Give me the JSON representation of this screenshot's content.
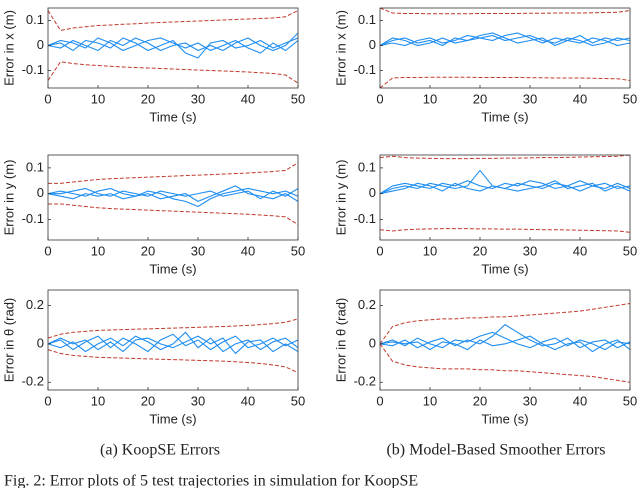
{
  "chart_data": [
    {
      "type": "line",
      "ylabel": "Error in x (m)",
      "xlabel": "Time (s)",
      "xlim": [
        0,
        50
      ],
      "xticks": [
        0,
        10,
        20,
        30,
        40,
        50
      ],
      "ylim": [
        -0.17,
        0.15
      ],
      "yticks": [
        -0.1,
        0,
        0.1
      ],
      "x": [
        0,
        2.5,
        5,
        7.5,
        10,
        12.5,
        15,
        17.5,
        20,
        22.5,
        25,
        27.5,
        30,
        32.5,
        35,
        37.5,
        40,
        42.5,
        45,
        47.5,
        50
      ],
      "series": [
        {
          "color": "#c0392b",
          "style": "dashed",
          "values": [
            0.14,
            0.06,
            0.07,
            0.075,
            0.08,
            0.082,
            0.085,
            0.087,
            0.09,
            0.092,
            0.094,
            0.096,
            0.098,
            0.1,
            0.102,
            0.104,
            0.106,
            0.108,
            0.11,
            0.115,
            0.14
          ]
        },
        {
          "color": "#c0392b",
          "style": "dashed",
          "values": [
            -0.14,
            -0.065,
            -0.072,
            -0.077,
            -0.08,
            -0.083,
            -0.086,
            -0.088,
            -0.09,
            -0.092,
            -0.094,
            -0.096,
            -0.098,
            -0.1,
            -0.102,
            -0.104,
            -0.106,
            -0.109,
            -0.112,
            -0.118,
            -0.15
          ]
        },
        {
          "color": "#1f8ef1",
          "style": "solid",
          "values": [
            0,
            0.01,
            -0.02,
            0.02,
            0.01,
            -0.01,
            0.03,
            0.01,
            -0.02,
            0.0,
            0.02,
            -0.03,
            -0.05,
            0.01,
            0.02,
            -0.01,
            0.0,
            0.02,
            -0.01,
            0.01,
            0.03
          ]
        },
        {
          "color": "#1f8ef1",
          "style": "solid",
          "values": [
            0,
            -0.01,
            0.02,
            0.0,
            -0.02,
            0.02,
            0.0,
            0.03,
            0.01,
            -0.02,
            0.0,
            0.01,
            -0.02,
            0.0,
            -0.02,
            0.01,
            0.03,
            0.0,
            -0.02,
            0.0,
            0.05
          ]
        },
        {
          "color": "#1f8ef1",
          "style": "solid",
          "values": [
            0,
            0.02,
            0.01,
            -0.01,
            0.03,
            0.01,
            -0.02,
            0.0,
            0.02,
            0.03,
            0.01,
            -0.01,
            0.01,
            -0.02,
            0.0,
            0.02,
            -0.01,
            -0.03,
            0.01,
            -0.02,
            0.02
          ]
        }
      ]
    },
    {
      "type": "line",
      "ylabel": "Error in x (m)",
      "xlabel": "Time (s)",
      "xlim": [
        0,
        50
      ],
      "xticks": [
        0,
        10,
        20,
        30,
        40,
        50
      ],
      "ylim": [
        -0.17,
        0.15
      ],
      "yticks": [
        -0.1,
        0,
        0.1
      ],
      "x": [
        0,
        2.5,
        5,
        7.5,
        10,
        12.5,
        15,
        17.5,
        20,
        22.5,
        25,
        27.5,
        30,
        32.5,
        35,
        37.5,
        40,
        42.5,
        45,
        47.5,
        50
      ],
      "series": [
        {
          "color": "#c0392b",
          "style": "dashed",
          "values": [
            0.15,
            0.13,
            0.128,
            0.128,
            0.127,
            0.127,
            0.127,
            0.127,
            0.128,
            0.128,
            0.128,
            0.128,
            0.129,
            0.129,
            0.13,
            0.13,
            0.13,
            0.131,
            0.132,
            0.133,
            0.14
          ]
        },
        {
          "color": "#c0392b",
          "style": "dashed",
          "values": [
            -0.17,
            -0.13,
            -0.128,
            -0.128,
            -0.127,
            -0.127,
            -0.127,
            -0.127,
            -0.128,
            -0.128,
            -0.128,
            -0.128,
            -0.129,
            -0.129,
            -0.13,
            -0.13,
            -0.13,
            -0.131,
            -0.132,
            -0.133,
            -0.14
          ]
        },
        {
          "color": "#1f8ef1",
          "style": "solid",
          "values": [
            0,
            0.02,
            0.03,
            0.01,
            0.02,
            0.0,
            0.03,
            0.02,
            0.04,
            0.05,
            0.03,
            0.01,
            0.02,
            0.03,
            0.0,
            0.02,
            0.01,
            0.03,
            0.02,
            0.0,
            0.01
          ]
        },
        {
          "color": "#1f8ef1",
          "style": "solid",
          "values": [
            0,
            0.01,
            0.0,
            0.02,
            0.03,
            0.01,
            0.02,
            0.04,
            0.03,
            0.02,
            0.04,
            0.05,
            0.03,
            0.01,
            0.03,
            0.02,
            0.04,
            0.01,
            0.03,
            0.02,
            0.03
          ]
        },
        {
          "color": "#1f8ef1",
          "style": "solid",
          "values": [
            0,
            0.03,
            0.02,
            0.0,
            0.01,
            0.03,
            0.01,
            0.02,
            0.03,
            0.04,
            0.02,
            0.03,
            0.04,
            0.02,
            0.01,
            0.03,
            0.02,
            0.0,
            0.01,
            0.03,
            0.02
          ]
        }
      ]
    },
    {
      "type": "line",
      "ylabel": "Error in y (m)",
      "xlabel": "Time (s)",
      "xlim": [
        0,
        50
      ],
      "xticks": [
        0,
        10,
        20,
        30,
        40,
        50
      ],
      "ylim": [
        -0.18,
        0.15
      ],
      "yticks": [
        -0.1,
        0,
        0.1
      ],
      "x": [
        0,
        2.5,
        5,
        7.5,
        10,
        12.5,
        15,
        17.5,
        20,
        22.5,
        25,
        27.5,
        30,
        32.5,
        35,
        37.5,
        40,
        42.5,
        45,
        47.5,
        50
      ],
      "series": [
        {
          "color": "#c0392b",
          "style": "dashed",
          "values": [
            0.04,
            0.04,
            0.045,
            0.05,
            0.055,
            0.058,
            0.06,
            0.062,
            0.064,
            0.066,
            0.068,
            0.07,
            0.072,
            0.074,
            0.076,
            0.078,
            0.08,
            0.083,
            0.086,
            0.09,
            0.12
          ]
        },
        {
          "color": "#c0392b",
          "style": "dashed",
          "values": [
            -0.04,
            -0.04,
            -0.045,
            -0.05,
            -0.055,
            -0.058,
            -0.06,
            -0.062,
            -0.064,
            -0.066,
            -0.068,
            -0.07,
            -0.072,
            -0.074,
            -0.076,
            -0.078,
            -0.08,
            -0.083,
            -0.086,
            -0.09,
            -0.12
          ]
        },
        {
          "color": "#1f8ef1",
          "style": "solid",
          "values": [
            0,
            0.01,
            0.0,
            -0.01,
            0.01,
            0.02,
            0.0,
            -0.01,
            0.01,
            0.0,
            -0.02,
            -0.03,
            -0.05,
            -0.02,
            0.0,
            0.01,
            0.02,
            0.01,
            0.0,
            0.01,
            -0.01
          ]
        },
        {
          "color": "#1f8ef1",
          "style": "solid",
          "values": [
            0,
            -0.01,
            -0.02,
            0.0,
            -0.01,
            0.0,
            -0.02,
            -0.01,
            0.0,
            -0.02,
            -0.01,
            0.0,
            -0.03,
            -0.01,
            0.01,
            0.03,
            0.0,
            -0.01,
            -0.02,
            0.0,
            -0.03
          ]
        },
        {
          "color": "#1f8ef1",
          "style": "solid",
          "values": [
            0,
            0.0,
            0.01,
            0.02,
            0.0,
            -0.01,
            0.01,
            0.0,
            -0.01,
            0.01,
            0.0,
            -0.01,
            0.0,
            0.01,
            -0.01,
            0.0,
            0.01,
            -0.02,
            0.01,
            -0.01,
            0.02
          ]
        }
      ]
    },
    {
      "type": "line",
      "ylabel": "Error in y (m)",
      "xlabel": "Time (s)",
      "xlim": [
        0,
        50
      ],
      "xticks": [
        0,
        10,
        20,
        30,
        40,
        50
      ],
      "ylim": [
        -0.18,
        0.15
      ],
      "yticks": [
        -0.1,
        0,
        0.1
      ],
      "x": [
        0,
        2.5,
        5,
        7.5,
        10,
        12.5,
        15,
        17.5,
        20,
        22.5,
        25,
        27.5,
        30,
        32.5,
        35,
        37.5,
        40,
        42.5,
        45,
        47.5,
        50
      ],
      "series": [
        {
          "color": "#c0392b",
          "style": "dashed",
          "values": [
            0.14,
            0.145,
            0.14,
            0.138,
            0.137,
            0.136,
            0.136,
            0.136,
            0.137,
            0.137,
            0.138,
            0.138,
            0.139,
            0.14,
            0.14,
            0.141,
            0.142,
            0.143,
            0.144,
            0.145,
            0.15
          ]
        },
        {
          "color": "#c0392b",
          "style": "dashed",
          "values": [
            -0.14,
            -0.145,
            -0.14,
            -0.138,
            -0.137,
            -0.136,
            -0.136,
            -0.136,
            -0.137,
            -0.137,
            -0.138,
            -0.138,
            -0.139,
            -0.14,
            -0.14,
            -0.141,
            -0.142,
            -0.143,
            -0.144,
            -0.145,
            -0.15
          ]
        },
        {
          "color": "#1f8ef1",
          "style": "solid",
          "values": [
            0,
            0.02,
            0.03,
            0.02,
            0.04,
            0.03,
            0.02,
            0.03,
            0.09,
            0.03,
            0.02,
            0.04,
            0.03,
            0.02,
            0.04,
            0.03,
            0.05,
            0.03,
            0.02,
            0.04,
            0.02
          ]
        },
        {
          "color": "#1f8ef1",
          "style": "solid",
          "values": [
            0,
            0.03,
            0.04,
            0.03,
            0.02,
            0.04,
            0.03,
            0.05,
            0.03,
            0.02,
            0.04,
            0.03,
            0.05,
            0.04,
            0.02,
            0.03,
            0.01,
            0.03,
            0.04,
            0.02,
            0.03
          ]
        },
        {
          "color": "#1f8ef1",
          "style": "solid",
          "values": [
            0,
            0.01,
            0.02,
            0.04,
            0.03,
            0.01,
            0.04,
            0.02,
            0.01,
            0.03,
            0.02,
            0.01,
            0.02,
            0.03,
            0.05,
            0.02,
            0.03,
            0.04,
            0.01,
            0.03,
            0.01
          ]
        }
      ]
    },
    {
      "type": "line",
      "ylabel": "Error in θ (rad)",
      "xlabel": "Time (s)",
      "xlim": [
        0,
        50
      ],
      "xticks": [
        0,
        10,
        20,
        30,
        40,
        50
      ],
      "ylim": [
        -0.24,
        0.28
      ],
      "yticks": [
        -0.2,
        0,
        0.2
      ],
      "x": [
        0,
        2.5,
        5,
        7.5,
        10,
        12.5,
        15,
        17.5,
        20,
        22.5,
        25,
        27.5,
        30,
        32.5,
        35,
        37.5,
        40,
        42.5,
        45,
        47.5,
        50
      ],
      "series": [
        {
          "color": "#c0392b",
          "style": "dashed",
          "values": [
            0.03,
            0.05,
            0.06,
            0.065,
            0.07,
            0.072,
            0.074,
            0.076,
            0.078,
            0.08,
            0.082,
            0.084,
            0.086,
            0.088,
            0.09,
            0.093,
            0.096,
            0.1,
            0.105,
            0.112,
            0.13
          ]
        },
        {
          "color": "#c0392b",
          "style": "dashed",
          "values": [
            -0.03,
            -0.05,
            -0.06,
            -0.065,
            -0.07,
            -0.072,
            -0.074,
            -0.076,
            -0.078,
            -0.08,
            -0.082,
            -0.084,
            -0.086,
            -0.088,
            -0.09,
            -0.093,
            -0.097,
            -0.102,
            -0.11,
            -0.12,
            -0.15
          ]
        },
        {
          "color": "#1f8ef1",
          "style": "solid",
          "values": [
            0,
            0.02,
            -0.03,
            0.01,
            0.04,
            -0.02,
            0.03,
            0.0,
            -0.04,
            0.02,
            0.05,
            -0.01,
            0.02,
            -0.03,
            0.01,
            0.04,
            -0.02,
            0.0,
            0.03,
            -0.01,
            0.02
          ]
        },
        {
          "color": "#1f8ef1",
          "style": "solid",
          "values": [
            0,
            -0.02,
            0.01,
            -0.04,
            0.0,
            0.03,
            -0.01,
            0.04,
            0.01,
            -0.03,
            0.0,
            0.06,
            -0.02,
            0.03,
            -0.04,
            0.0,
            0.02,
            -0.03,
            0.01,
            0.03,
            -0.02
          ]
        },
        {
          "color": "#1f8ef1",
          "style": "solid",
          "values": [
            0,
            0.03,
            0.0,
            0.02,
            -0.03,
            0.01,
            -0.04,
            0.02,
            0.03,
            0.0,
            -0.02,
            0.01,
            0.04,
            0.0,
            0.03,
            -0.05,
            0.01,
            0.02,
            -0.04,
            0.0,
            -0.04
          ]
        }
      ]
    },
    {
      "type": "line",
      "ylabel": "Error in θ (rad)",
      "xlabel": "Time (s)",
      "xlim": [
        0,
        50
      ],
      "xticks": [
        0,
        10,
        20,
        30,
        40,
        50
      ],
      "ylim": [
        -0.24,
        0.28
      ],
      "yticks": [
        -0.2,
        0,
        0.2
      ],
      "x": [
        0,
        2.5,
        5,
        7.5,
        10,
        12.5,
        15,
        17.5,
        20,
        22.5,
        25,
        27.5,
        30,
        32.5,
        35,
        37.5,
        40,
        42.5,
        45,
        47.5,
        50
      ],
      "series": [
        {
          "color": "#c0392b",
          "style": "dashed",
          "values": [
            0.0,
            0.09,
            0.11,
            0.12,
            0.125,
            0.13,
            0.13,
            0.135,
            0.135,
            0.14,
            0.14,
            0.145,
            0.15,
            0.155,
            0.16,
            0.165,
            0.17,
            0.18,
            0.19,
            0.2,
            0.21
          ]
        },
        {
          "color": "#c0392b",
          "style": "dashed",
          "values": [
            0.0,
            -0.09,
            -0.11,
            -0.12,
            -0.125,
            -0.13,
            -0.13,
            -0.13,
            -0.135,
            -0.135,
            -0.14,
            -0.14,
            -0.145,
            -0.15,
            -0.155,
            -0.16,
            -0.165,
            -0.17,
            -0.18,
            -0.19,
            -0.2
          ]
        },
        {
          "color": "#1f8ef1",
          "style": "solid",
          "values": [
            0,
            0.02,
            -0.01,
            0.03,
            0.0,
            -0.02,
            0.02,
            0.01,
            0.04,
            0.06,
            0.03,
            0.0,
            -0.02,
            0.01,
            0.03,
            -0.01,
            0.02,
            0.0,
            -0.03,
            0.01,
            0.0
          ]
        },
        {
          "color": "#1f8ef1",
          "style": "solid",
          "values": [
            0,
            -0.01,
            0.02,
            -0.02,
            0.01,
            0.03,
            -0.01,
            0.02,
            0.0,
            0.04,
            0.1,
            0.06,
            0.02,
            -0.01,
            0.0,
            0.03,
            -0.02,
            0.01,
            0.02,
            -0.02,
            0.01
          ]
        },
        {
          "color": "#1f8ef1",
          "style": "solid",
          "values": [
            0,
            0.01,
            0.0,
            0.01,
            -0.03,
            0.01,
            0.0,
            -0.03,
            0.02,
            -0.01,
            0.0,
            0.02,
            0.04,
            0.0,
            -0.03,
            0.0,
            0.01,
            -0.04,
            0.0,
            0.02,
            -0.03
          ]
        }
      ]
    }
  ],
  "captions": [
    "(a) KoopSE Errors",
    "(b) Model-Based Smoother Errors"
  ],
  "figure_caption": "Fig. 2: Error plots of 5 test trajectories in simulation for KoopSE"
}
